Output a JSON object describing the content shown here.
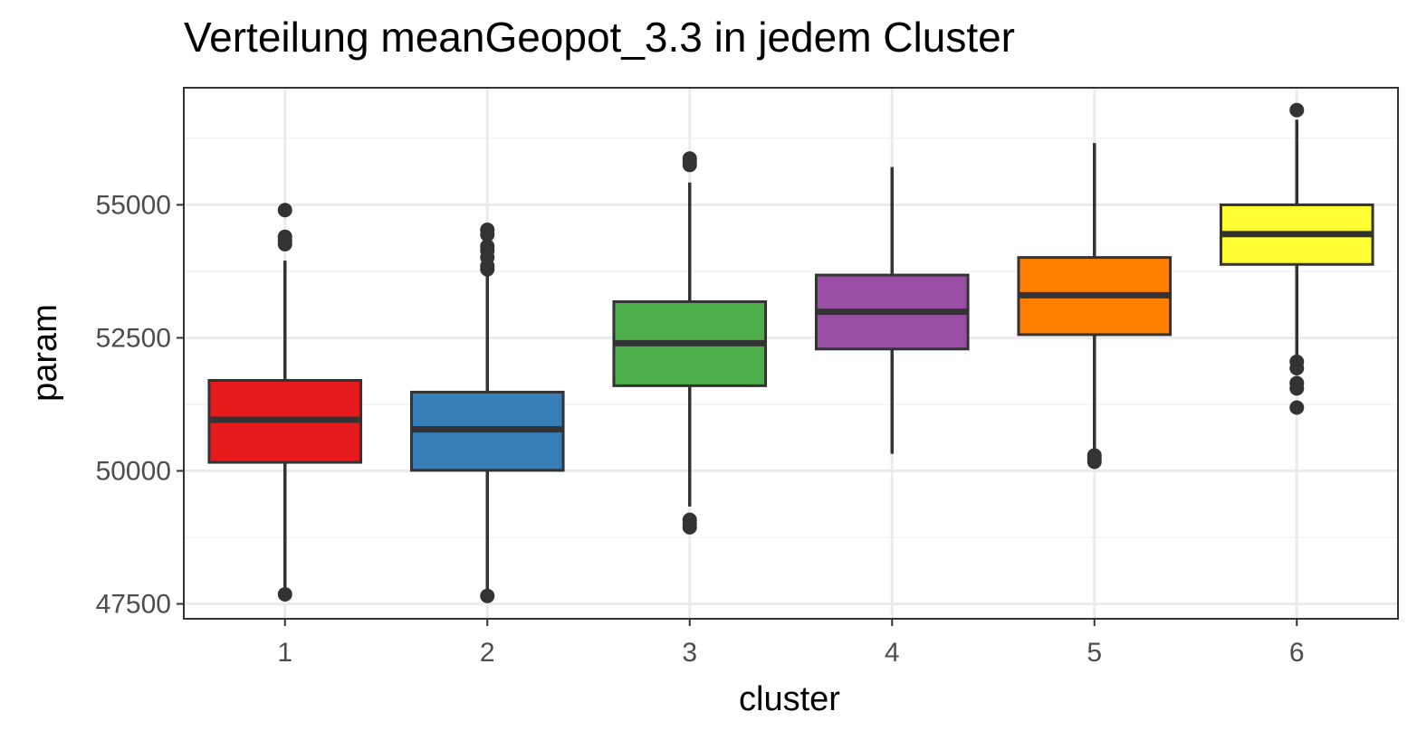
{
  "chart_data": {
    "type": "boxplot",
    "title": "Verteilung meanGeopot_3.3 in jedem Cluster",
    "xlabel": "cluster",
    "ylabel": "param",
    "categories": [
      "1",
      "2",
      "3",
      "4",
      "5",
      "6"
    ],
    "ylim": [
      47220,
      57200
    ],
    "yticks": [
      47500,
      50000,
      52500,
      55000
    ],
    "grid": true,
    "legend": "none",
    "boxes": [
      {
        "cluster": "1",
        "color": "#E41A1C",
        "whisker_low": 47680,
        "q1": 50160,
        "median": 50960,
        "q3": 51700,
        "whisker_high": 53950,
        "outliers": [
          47680,
          54260,
          54330,
          54400,
          54900
        ]
      },
      {
        "cluster": "2",
        "color": "#377EB8",
        "whisker_low": 47650,
        "q1": 50010,
        "median": 50780,
        "q3": 51480,
        "whisker_high": 53720,
        "outliers": [
          47650,
          53790,
          53850,
          54010,
          54140,
          54220,
          54440,
          54530
        ]
      },
      {
        "cluster": "3",
        "color": "#4DAF4A",
        "whisker_low": 49330,
        "q1": 51600,
        "median": 52400,
        "q3": 53180,
        "whisker_high": 55420,
        "outliers": [
          48940,
          49000,
          49080,
          55750,
          55810,
          55870
        ]
      },
      {
        "cluster": "4",
        "color": "#984EA3",
        "whisker_low": 50320,
        "q1": 52290,
        "median": 52990,
        "q3": 53680,
        "whisker_high": 55710,
        "outliers": []
      },
      {
        "cluster": "5",
        "color": "#FF7F00",
        "whisker_low": 50350,
        "q1": 52560,
        "median": 53300,
        "q3": 54010,
        "whisker_high": 56160,
        "outliers": [
          50170,
          50230,
          50290
        ]
      },
      {
        "cluster": "6",
        "color": "#FFFF33",
        "whisker_low": 52150,
        "q1": 53880,
        "median": 54450,
        "q3": 55000,
        "whisker_high": 56600,
        "outliers": [
          51190,
          51550,
          51650,
          51930,
          52050,
          56780
        ]
      }
    ]
  },
  "colors": {
    "panel_border": "#333333",
    "grid_major": "#EBEBEB",
    "grid_minor": "#F3F3F3",
    "box_line": "#333333"
  }
}
